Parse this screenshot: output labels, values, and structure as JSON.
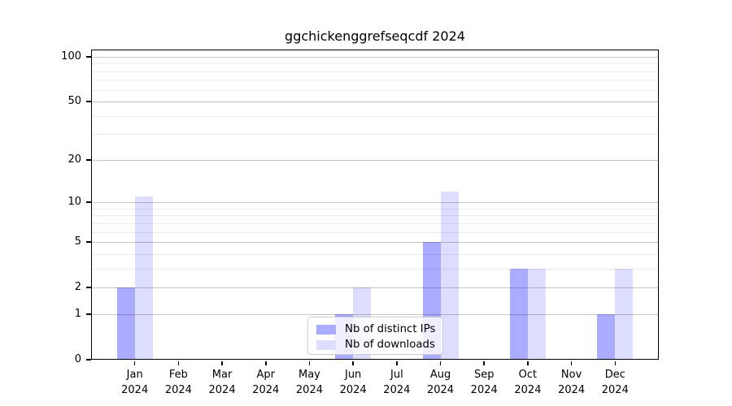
{
  "chart_data": {
    "type": "bar",
    "title": "ggchickenggrefseqcdf 2024",
    "x": {
      "months": [
        "Jan",
        "Feb",
        "Mar",
        "Apr",
        "May",
        "Jun",
        "Jul",
        "Aug",
        "Sep",
        "Oct",
        "Nov",
        "Dec"
      ],
      "year": "2024"
    },
    "series": [
      {
        "name": "Nb of distinct IPs",
        "color": "#aaaaff",
        "values": [
          2,
          0,
          0,
          0,
          0,
          1,
          0,
          5,
          0,
          3,
          0,
          1
        ]
      },
      {
        "name": "Nb of downloads",
        "color": "#ddddff",
        "values": [
          11,
          0,
          0,
          0,
          0,
          2,
          0,
          12,
          0,
          3,
          0,
          3
        ]
      }
    ],
    "y_axis": {
      "scale": "log10(value+1)",
      "range": [
        0,
        100
      ],
      "ticks": [
        0,
        1,
        2,
        5,
        10,
        20,
        50,
        100
      ],
      "minor_gridlines": [
        3,
        4,
        6,
        7,
        8,
        9,
        30,
        40,
        60,
        70,
        80,
        90
      ]
    },
    "grid": "on",
    "legend": {
      "position": "inside-bottom-center"
    },
    "colors": {
      "major_grid": "rgba(0,0,0,0.22)",
      "minor_grid": "rgba(0,0,0,0.08)",
      "axis": "#000000",
      "background": "#ffffff"
    }
  }
}
